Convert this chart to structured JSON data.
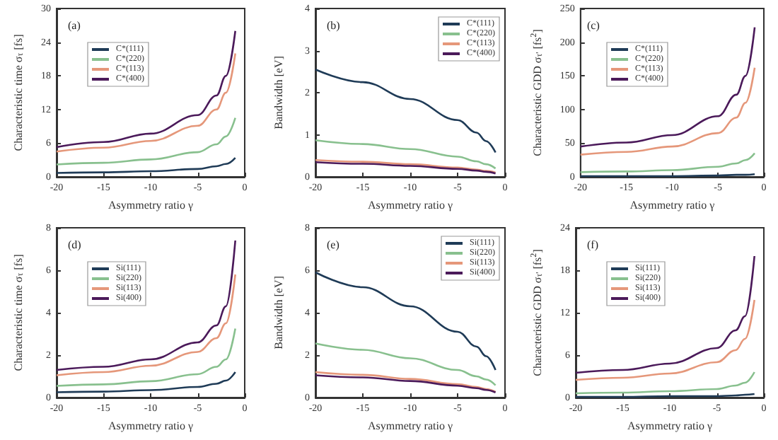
{
  "chart_data": [
    {
      "type": "line",
      "annotations": [
        "(a)"
      ],
      "xlabel": "Asymmetry ratio γ",
      "ylabel": "Characteristic time σ$_{τ}$ [fs]",
      "x": [
        -20,
        -15,
        -10,
        -5,
        -3,
        -2,
        -1
      ],
      "xlim": [
        -20,
        0
      ],
      "xticks": [
        -20,
        -15,
        -10,
        -5,
        0
      ],
      "ylim": [
        0,
        30
      ],
      "yticks": [
        0,
        6,
        12,
        18,
        24,
        30
      ],
      "grid": false,
      "legend": "top left",
      "marker": "none",
      "line_style": "solid",
      "series": [
        {
          "name": "C*(111)",
          "color": "#1f3b57",
          "values": [
            0.7,
            0.8,
            1.0,
            1.4,
            1.9,
            2.3,
            3.4
          ]
        },
        {
          "name": "C*(220)",
          "color": "#88c08e",
          "values": [
            2.2,
            2.5,
            3.1,
            4.4,
            5.8,
            7.2,
            10.5
          ]
        },
        {
          "name": "C*(113)",
          "color": "#e5977a",
          "values": [
            4.5,
            5.2,
            6.4,
            9.1,
            12,
            15,
            22
          ]
        },
        {
          "name": "C*(400)",
          "color": "#4b1a5a",
          "values": [
            5.3,
            6.2,
            7.7,
            11,
            14.5,
            18,
            26
          ]
        }
      ]
    },
    {
      "type": "line",
      "annotations": [
        "(b)"
      ],
      "xlabel": "Asymmetry ratio γ",
      "ylabel": "Bandwidth [eV]",
      "x": [
        -20,
        -15,
        -10,
        -5,
        -3,
        -2,
        -1
      ],
      "xlim": [
        -20,
        0
      ],
      "xticks": [
        -20,
        -15,
        -10,
        -5,
        0
      ],
      "ylim": [
        0,
        4
      ],
      "yticks": [
        0,
        1,
        2,
        3,
        4
      ],
      "grid": false,
      "legend": "top right",
      "marker": "none",
      "line_style": "solid",
      "series": [
        {
          "name": "C*(111)",
          "color": "#1f3b57",
          "values": [
            2.55,
            2.25,
            1.85,
            1.35,
            1.05,
            0.85,
            0.58
          ]
        },
        {
          "name": "C*(220)",
          "color": "#88c08e",
          "values": [
            0.87,
            0.78,
            0.66,
            0.48,
            0.37,
            0.3,
            0.2
          ]
        },
        {
          "name": "C*(113)",
          "color": "#e5977a",
          "values": [
            0.4,
            0.36,
            0.3,
            0.22,
            0.17,
            0.14,
            0.1
          ]
        },
        {
          "name": "C*(400)",
          "color": "#4b1a5a",
          "values": [
            0.35,
            0.31,
            0.26,
            0.19,
            0.15,
            0.12,
            0.08
          ]
        }
      ]
    },
    {
      "type": "line",
      "annotations": [
        "(c)"
      ],
      "xlabel": "Asymmetry ratio γ",
      "ylabel": "Characteristic GDD σ$_{τ'}$ [fs$^{2}$]",
      "x": [
        -20,
        -15,
        -10,
        -5,
        -3,
        -2,
        -1
      ],
      "xlim": [
        -20,
        0
      ],
      "xticks": [
        -20,
        -15,
        -10,
        -5,
        0
      ],
      "ylim": [
        0,
        250
      ],
      "yticks": [
        0,
        50,
        100,
        150,
        200,
        250
      ],
      "grid": false,
      "legend": "top left",
      "marker": "none",
      "line_style": "solid",
      "series": [
        {
          "name": "C*(111)",
          "color": "#1f3b57",
          "values": [
            1,
            1,
            1,
            2,
            3,
            3,
            4
          ]
        },
        {
          "name": "C*(220)",
          "color": "#88c08e",
          "values": [
            7,
            8,
            10,
            15,
            20,
            25,
            35
          ]
        },
        {
          "name": "C*(113)",
          "color": "#e5977a",
          "values": [
            33,
            37,
            45,
            65,
            88,
            110,
            162
          ]
        },
        {
          "name": "C*(400)",
          "color": "#4b1a5a",
          "values": [
            45,
            51,
            62,
            90,
            122,
            150,
            222
          ]
        }
      ]
    },
    {
      "type": "line",
      "annotations": [
        "(d)"
      ],
      "xlabel": "Asymmetry ratio γ",
      "ylabel": "Characteristic time σ$_{τ}$ [fs]",
      "x": [
        -20,
        -15,
        -10,
        -5,
        -3,
        -2,
        -1
      ],
      "xlim": [
        -20,
        0
      ],
      "xticks": [
        -20,
        -15,
        -10,
        -5,
        0
      ],
      "ylim": [
        0,
        8
      ],
      "yticks": [
        0,
        2,
        4,
        6,
        8
      ],
      "grid": false,
      "legend": "top left",
      "marker": "none",
      "line_style": "solid",
      "series": [
        {
          "name": "Si(111)",
          "color": "#1f3b57",
          "values": [
            0.25,
            0.28,
            0.35,
            0.5,
            0.65,
            0.8,
            1.2
          ]
        },
        {
          "name": "Si(220)",
          "color": "#88c08e",
          "values": [
            0.55,
            0.62,
            0.77,
            1.1,
            1.45,
            1.8,
            3.25
          ]
        },
        {
          "name": "Si(113)",
          "color": "#e5977a",
          "values": [
            1.05,
            1.2,
            1.5,
            2.15,
            2.8,
            3.5,
            5.8
          ]
        },
        {
          "name": "Si(400)",
          "color": "#4b1a5a",
          "values": [
            1.3,
            1.45,
            1.8,
            2.6,
            3.4,
            4.3,
            7.4
          ]
        }
      ]
    },
    {
      "type": "line",
      "annotations": [
        "(e)"
      ],
      "xlabel": "Asymmetry ratio γ",
      "ylabel": "Bandwidth [eV]",
      "x": [
        -20,
        -15,
        -10,
        -5,
        -3,
        -2,
        -1
      ],
      "xlim": [
        -20,
        0
      ],
      "xticks": [
        -20,
        -15,
        -10,
        -5,
        0
      ],
      "ylim": [
        0,
        8
      ],
      "yticks": [
        0,
        2,
        4,
        6,
        8
      ],
      "grid": false,
      "legend": "top right",
      "marker": "none",
      "line_style": "solid",
      "series": [
        {
          "name": "Si(111)",
          "color": "#1f3b57",
          "values": [
            5.9,
            5.2,
            4.3,
            3.1,
            2.4,
            1.95,
            1.3
          ]
        },
        {
          "name": "Si(220)",
          "color": "#88c08e",
          "values": [
            2.55,
            2.25,
            1.85,
            1.3,
            1.0,
            0.85,
            0.58
          ]
        },
        {
          "name": "Si(113)",
          "color": "#e5977a",
          "values": [
            1.2,
            1.07,
            0.88,
            0.63,
            0.5,
            0.4,
            0.27
          ]
        },
        {
          "name": "Si(400)",
          "color": "#4b1a5a",
          "values": [
            1.05,
            0.95,
            0.78,
            0.56,
            0.44,
            0.36,
            0.24
          ]
        }
      ]
    },
    {
      "type": "line",
      "annotations": [
        "(f)"
      ],
      "xlabel": "Asymmetry ratio γ",
      "ylabel": "Characteristic GDD σ$_{τ'}$ [fs$^{2}$]",
      "x": [
        -20,
        -15,
        -10,
        -5,
        -3,
        -2,
        -1
      ],
      "xlim": [
        -20,
        0
      ],
      "xticks": [
        -20,
        -15,
        -10,
        -5,
        0
      ],
      "ylim": [
        0,
        24
      ],
      "yticks": [
        0,
        6,
        12,
        18,
        24
      ],
      "grid": false,
      "legend": "top left",
      "marker": "none",
      "line_style": "solid",
      "series": [
        {
          "name": "Si(111)",
          "color": "#1f3b57",
          "values": [
            0.1,
            0.1,
            0.2,
            0.2,
            0.3,
            0.4,
            0.5
          ]
        },
        {
          "name": "Si(220)",
          "color": "#88c08e",
          "values": [
            0.6,
            0.7,
            0.9,
            1.2,
            1.7,
            2.1,
            3.6
          ]
        },
        {
          "name": "Si(113)",
          "color": "#e5977a",
          "values": [
            2.5,
            2.8,
            3.4,
            5,
            6.7,
            8.3,
            13.8
          ]
        },
        {
          "name": "Si(400)",
          "color": "#4b1a5a",
          "values": [
            3.5,
            3.9,
            4.8,
            7,
            9.5,
            11.5,
            20
          ]
        }
      ]
    }
  ]
}
